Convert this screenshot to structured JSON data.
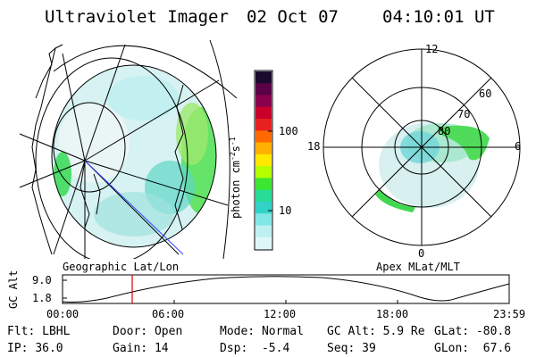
{
  "header": {
    "instrument": "Ultraviolet Imager",
    "date": "02 Oct 07",
    "time": "04:10:01 UT"
  },
  "colorbar": {
    "unit": "photon cm",
    "unit_exp1": "-2",
    "unit_s": "s",
    "unit_exp2": "-1",
    "ticks": [
      "100",
      "10"
    ],
    "colors": [
      "#1a0a2e",
      "#5a0048",
      "#8b004e",
      "#c8002a",
      "#e82020",
      "#ff6a00",
      "#ffb000",
      "#ffe800",
      "#b4ff00",
      "#3ce632",
      "#28dc96",
      "#32d2c8",
      "#82e6e6",
      "#bef0f0",
      "#e0f6f6"
    ]
  },
  "geo_panel": {
    "caption": "Geographic Lat/Lon"
  },
  "polar_panel": {
    "caption": "Apex MLat/MLT",
    "mlt_labels": [
      "12",
      "18",
      "6",
      "0"
    ],
    "lat_labels": [
      "60",
      "70",
      "80"
    ]
  },
  "alt_plot": {
    "ylabel": "GC Alt",
    "yticks": [
      "9.0",
      "1.8"
    ],
    "xticks": [
      "00:00",
      "06:00",
      "12:00",
      "18:00",
      "23:59"
    ]
  },
  "status": {
    "row1": [
      {
        "label": "Flt:",
        "value": "LBHL"
      },
      {
        "label": "Door:",
        "value": "Open"
      },
      {
        "label": "Mode:",
        "value": "Normal"
      },
      {
        "label": "GC Alt:",
        "value": "5.9 Re"
      },
      {
        "label": "GLat:",
        "value": "-80.8"
      }
    ],
    "row2": [
      {
        "label": "IP:",
        "value": "36.0"
      },
      {
        "label": "Gain:",
        "value": "14"
      },
      {
        "label": "Dsp:",
        "value": "-5.4"
      },
      {
        "label": "Seq:",
        "value": "39"
      },
      {
        "label": "GLon:",
        "value": "67.6"
      }
    ]
  }
}
